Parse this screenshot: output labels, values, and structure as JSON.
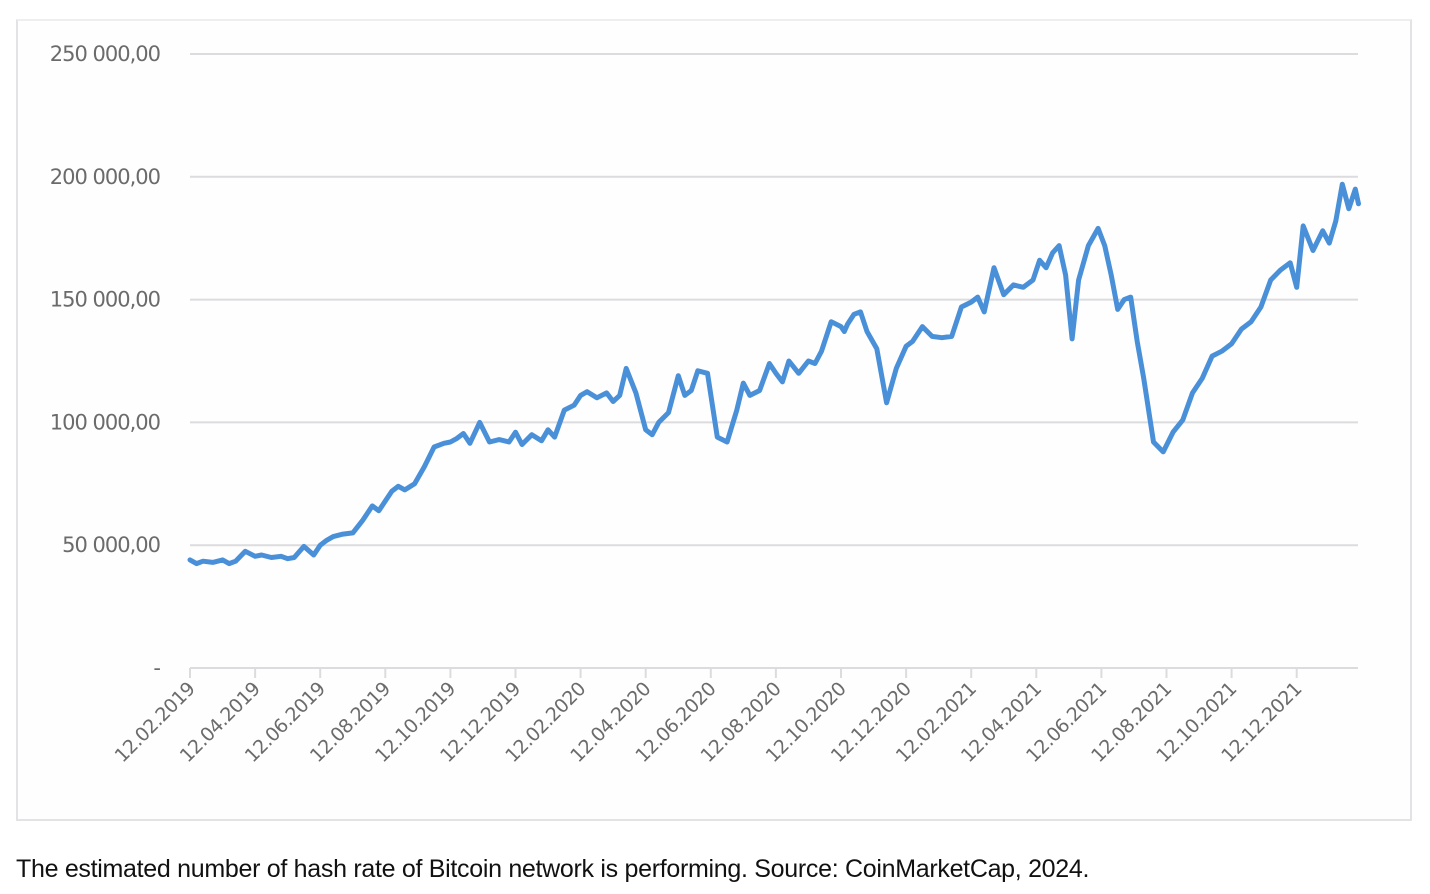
{
  "caption": "The estimated number of hash rate of Bitcoin network is performing. Source: CoinMarketCap, 2024.",
  "colors": {
    "line": "#4a90d9",
    "grid": "#dcdcdf",
    "axis_text": "#6b6b6b",
    "frame": "#e3e3e6"
  },
  "chart_data": {
    "type": "line",
    "title": "",
    "xlabel": "",
    "ylabel": "",
    "ylim": [
      0,
      250000
    ],
    "grid": true,
    "legend": null,
    "y_ticks": [
      "-",
      "50 000,00",
      "100 000,00",
      "150 000,00",
      "200 000,00",
      "250 000,00"
    ],
    "y_tick_values": [
      0,
      50000,
      100000,
      150000,
      200000,
      250000
    ],
    "x_ticks": [
      "12.02.2019",
      "12.04.2019",
      "12.06.2019",
      "12.08.2019",
      "12.10.2019",
      "12.12.2019",
      "12.02.2020",
      "12.04.2020",
      "12.06.2020",
      "12.08.2020",
      "12.10.2020",
      "12.12.2020",
      "12.02.2021",
      "12.04.2021",
      "12.06.2021",
      "12.08.2021",
      "12.10.2021",
      "12.12.2021"
    ],
    "series": [
      {
        "name": "Hash rate",
        "x_index": [
          0,
          0.1,
          0.2,
          0.35,
          0.5,
          0.6,
          0.7,
          0.85,
          1.0,
          1.1,
          1.25,
          1.4,
          1.5,
          1.6,
          1.75,
          1.9,
          2.0,
          2.1,
          2.2,
          2.35,
          2.5,
          2.65,
          2.8,
          2.9,
          3.0,
          3.1,
          3.2,
          3.3,
          3.45,
          3.6,
          3.75,
          3.9,
          4.0,
          4.1,
          4.2,
          4.3,
          4.45,
          4.6,
          4.75,
          4.9,
          5.0,
          5.1,
          5.25,
          5.4,
          5.5,
          5.6,
          5.75,
          5.9,
          6.0,
          6.1,
          6.25,
          6.4,
          6.5,
          6.6,
          6.7,
          6.85,
          7.0,
          7.1,
          7.2,
          7.35,
          7.5,
          7.6,
          7.7,
          7.8,
          7.95,
          8.1,
          8.25,
          8.4,
          8.5,
          8.6,
          8.75,
          8.9,
          9.0,
          9.1,
          9.2,
          9.35,
          9.5,
          9.6,
          9.7,
          9.85,
          10.0,
          10.05,
          10.1,
          10.2,
          10.3,
          10.4,
          10.55,
          10.7,
          10.85,
          11.0,
          11.1,
          11.25,
          11.4,
          11.55,
          11.7,
          11.85,
          12.0,
          12.1,
          12.2,
          12.35,
          12.5,
          12.65,
          12.8,
          12.95,
          13.05,
          13.15,
          13.25,
          13.35,
          13.45,
          13.55,
          13.65,
          13.8,
          13.95,
          14.05,
          14.15,
          14.25,
          14.35,
          14.45,
          14.55,
          14.65,
          14.8,
          14.95,
          15.1,
          15.25,
          15.4,
          15.55,
          15.7,
          15.85,
          16.0,
          16.15,
          16.3,
          16.45,
          16.6,
          16.75,
          16.9,
          17.0,
          17.1,
          17.25,
          17.4,
          17.5,
          17.6,
          17.7,
          17.8,
          17.9,
          17.95
        ],
        "values": [
          44000,
          42500,
          43500,
          43000,
          44000,
          42500,
          43500,
          47500,
          45500,
          46000,
          45000,
          45500,
          44500,
          45000,
          49500,
          46000,
          50000,
          52000,
          53500,
          54500,
          55000,
          60000,
          66000,
          64000,
          68000,
          72000,
          74000,
          72500,
          75000,
          82000,
          90000,
          91500,
          92000,
          93500,
          95500,
          91500,
          100000,
          92000,
          93000,
          92000,
          96000,
          91000,
          95000,
          92500,
          97000,
          94000,
          105000,
          107000,
          111000,
          112500,
          110000,
          112000,
          108500,
          111000,
          122000,
          112000,
          97000,
          95000,
          100000,
          104000,
          119000,
          111000,
          113000,
          121000,
          120000,
          94000,
          92000,
          105000,
          116000,
          111000,
          113000,
          124000,
          120000,
          116500,
          125000,
          120000,
          125000,
          124000,
          129000,
          141000,
          139000,
          137000,
          140000,
          144000,
          145000,
          137000,
          130000,
          108000,
          122000,
          131000,
          133000,
          139000,
          135000,
          134500,
          135000,
          147000,
          149000,
          151000,
          145000,
          163000,
          152000,
          156000,
          155000,
          158000,
          166000,
          163000,
          169000,
          172000,
          160000,
          134000,
          158000,
          172000,
          179000,
          172000,
          160000,
          146000,
          150000,
          151000,
          133000,
          118000,
          92000,
          88000,
          96000,
          101000,
          112000,
          118000,
          127000,
          129000,
          132000,
          138000,
          141000,
          147000,
          158000,
          162000,
          165000,
          155000,
          180000,
          170000,
          178000,
          173000,
          182000,
          197000,
          187000,
          195000,
          189000
        ]
      }
    ]
  }
}
